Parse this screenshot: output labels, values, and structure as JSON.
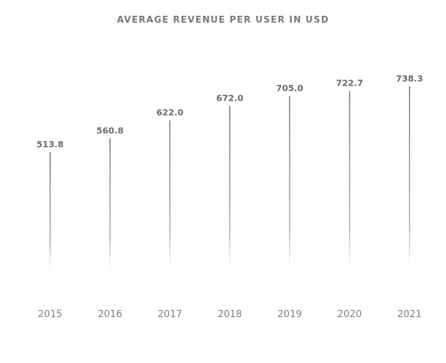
{
  "chart_data": {
    "type": "bar",
    "title": "AVERAGE REVENUE PER USER IN USD",
    "xlabel": "",
    "ylabel": "",
    "categories": [
      "2015",
      "2016",
      "2017",
      "2018",
      "2019",
      "2020",
      "2021"
    ],
    "values": [
      513.8,
      560.8,
      622.0,
      672.0,
      705.0,
      722.7,
      738.3
    ],
    "value_labels": [
      "513.8",
      "560.8",
      "622.0",
      "672.0",
      "705.0",
      "722.7",
      "738.3"
    ],
    "grid": false,
    "legend": "none",
    "colors": {
      "bar": "#808080",
      "title": "#7a7a7a",
      "value_label": "#6b6b6b",
      "tick_label": "#7d7d7d"
    }
  }
}
